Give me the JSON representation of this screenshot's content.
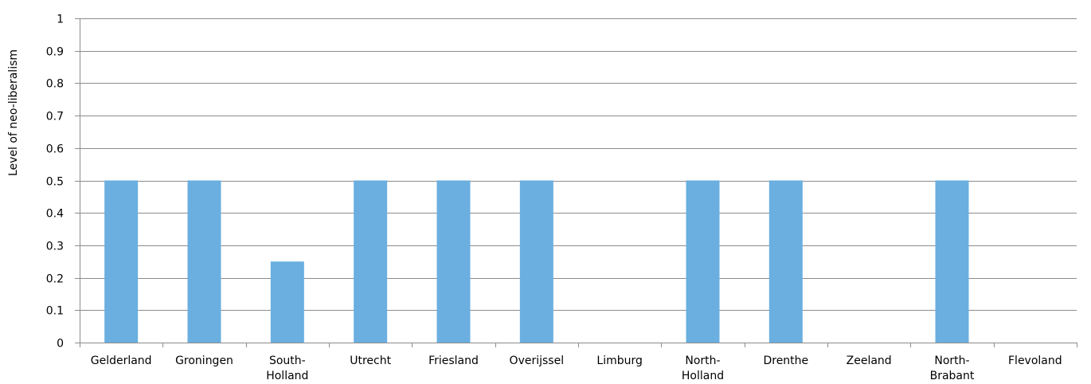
{
  "chart_data": {
    "type": "bar",
    "title": "",
    "xlabel": "",
    "ylabel": "Level of neo-liberalism",
    "categories": [
      [
        "Gelderland"
      ],
      [
        "Groningen"
      ],
      [
        "South-",
        "Holland"
      ],
      [
        "Utrecht"
      ],
      [
        "Friesland"
      ],
      [
        "Overijssel"
      ],
      [
        "Limburg"
      ],
      [
        "North-",
        "Holland"
      ],
      [
        "Drenthe"
      ],
      [
        "Zeeland"
      ],
      [
        "North-",
        "Brabant"
      ],
      [
        "Flevoland"
      ]
    ],
    "values": [
      0.5,
      0.5,
      0.25,
      0.5,
      0.5,
      0.5,
      0,
      0.5,
      0.5,
      0,
      0.5,
      0
    ],
    "ylim": [
      0,
      1
    ],
    "yticks": [
      "0",
      "0.1",
      "0.2",
      "0.3",
      "0.4",
      "0.5",
      "0.6",
      "0.7",
      "0.8",
      "0.9",
      "1"
    ],
    "grid": true,
    "legend": "none",
    "colors": {
      "bar": "#6aafe0",
      "grid": "#8c8c8c",
      "axis": "#8c8c8c"
    }
  }
}
